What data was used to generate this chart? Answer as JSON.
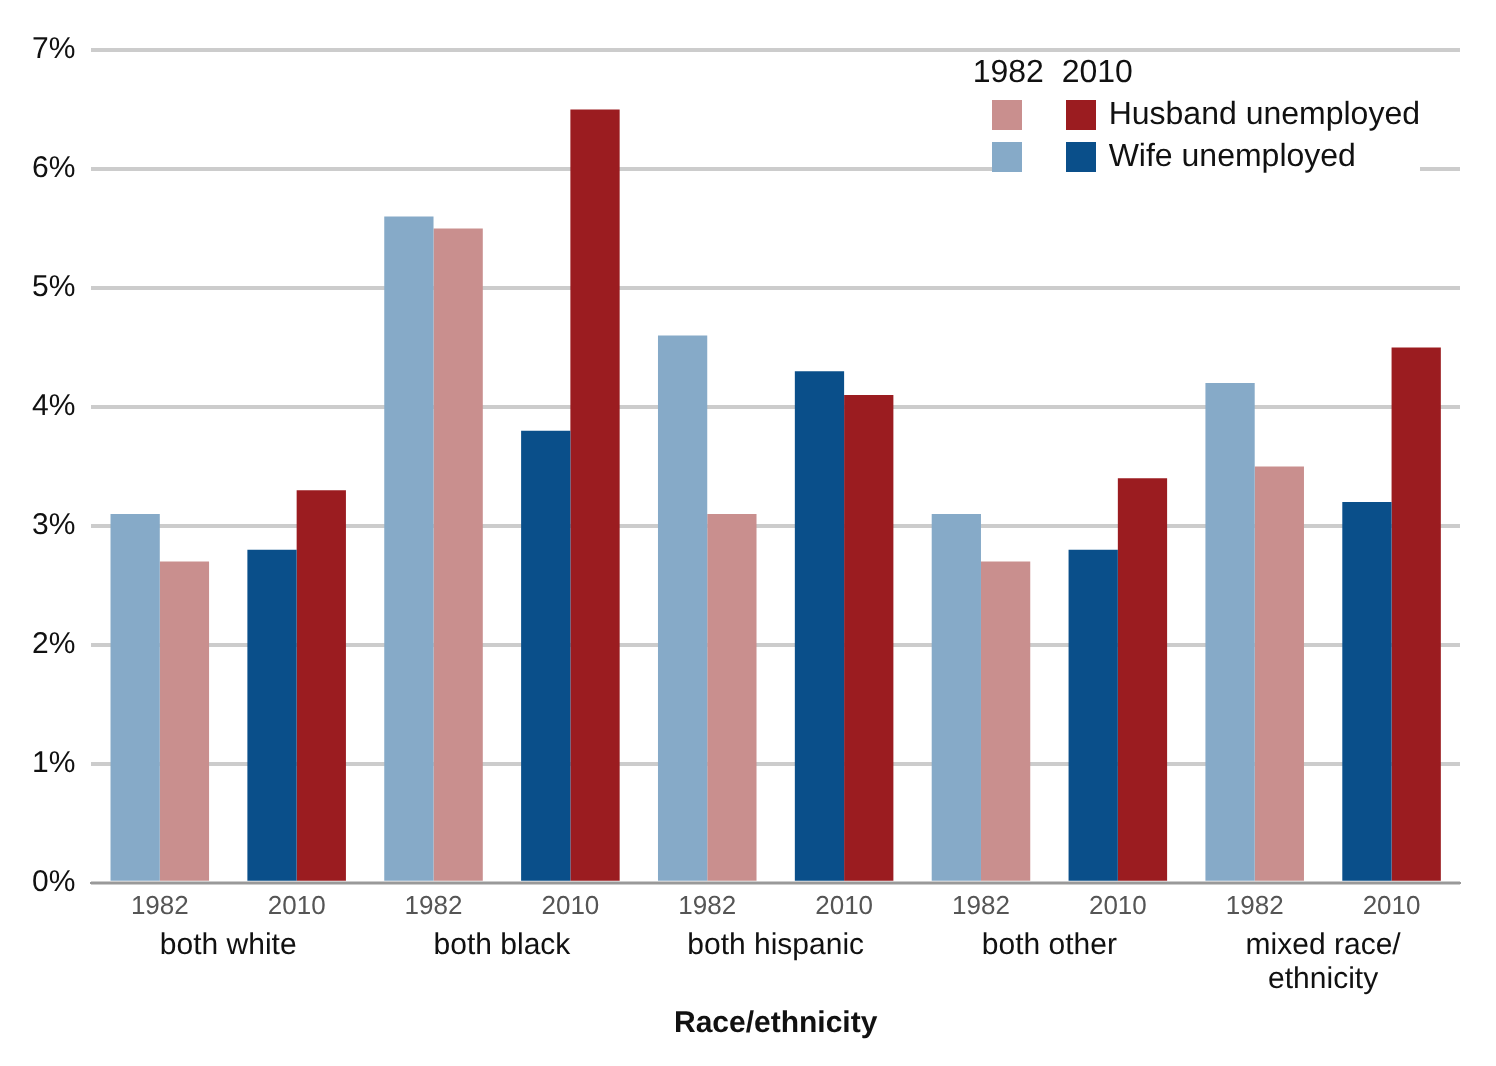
{
  "chart_data": {
    "type": "bar",
    "xlabel": "Race/ethnicity",
    "legend_title": "1982  2010",
    "legend": "top right",
    "grid": "y",
    "categories": [
      "1982",
      "2010",
      "1982",
      "2010",
      "1982",
      "2010",
      "1982",
      "2010",
      "1982",
      "2010"
    ],
    "annotations": [
      "both white",
      "both black",
      "both hispanic",
      "both other",
      "mixed race/ ethnicity"
    ],
    "ylim": [
      0,
      7
    ],
    "yticks": [
      {
        "value": 0,
        "label": "0%"
      },
      {
        "value": 1,
        "label": "1%"
      },
      {
        "value": 2,
        "label": "2%"
      },
      {
        "value": 3,
        "label": "3%"
      },
      {
        "value": 4,
        "label": "4%"
      },
      {
        "value": 5,
        "label": "5%"
      },
      {
        "value": 6,
        "label": "6%"
      },
      {
        "value": 7,
        "label": "7%"
      }
    ],
    "series": [
      {
        "name": "Husband unemployed",
        "colors": [
          "#c98f8e",
          "#9b1c20",
          "#c98f8e",
          "#9b1c20",
          "#c98f8e",
          "#9b1c20",
          "#c98f8e",
          "#9b1c20",
          "#c98f8e",
          "#9b1c20"
        ],
        "values": [
          2.7,
          3.3,
          5.5,
          6.5,
          3.1,
          4.1,
          2.7,
          3.4,
          3.5,
          4.5
        ]
      },
      {
        "name": "Wife unemployed",
        "colors": [
          "#86aac8",
          "#0a4f8a",
          "#86aac8",
          "#0a4f8a",
          "#86aac8",
          "#0a4f8a",
          "#86aac8",
          "#0a4f8a",
          "#86aac8",
          "#0a4f8a"
        ],
        "values": [
          3.1,
          2.8,
          5.6,
          3.8,
          4.6,
          4.3,
          3.1,
          2.8,
          4.2,
          3.2
        ]
      }
    ]
  }
}
